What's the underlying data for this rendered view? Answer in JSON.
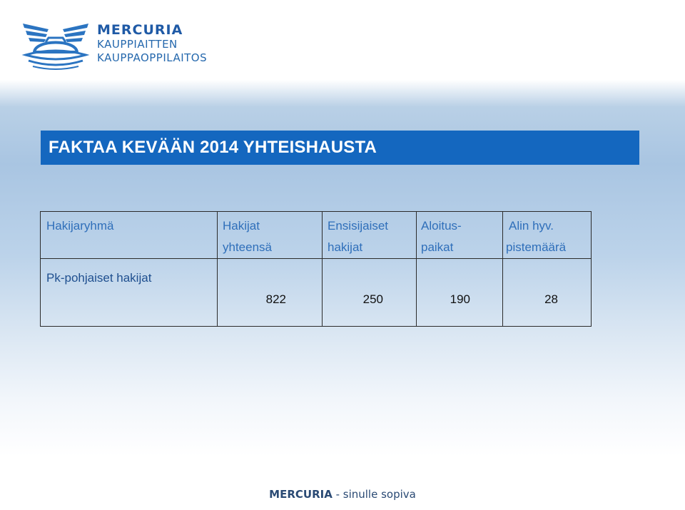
{
  "logo": {
    "line1": "MERCURIA",
    "line2": "KAUPPIAITTEN",
    "line3": "KAUPPAOPPILAITOS",
    "icon": "winged-helmet-icon",
    "color": "#1f5aa6"
  },
  "title": "FAKTAA KEVÄÄN 2014 YHTEISHAUSTA",
  "table": {
    "headers": [
      {
        "line1": "Hakijaryhmä",
        "line2": ""
      },
      {
        "line1": "Hakijat",
        "line2": "yhteensä"
      },
      {
        "line1": "Ensisijaiset",
        "line2": "hakijat"
      },
      {
        "line1": "Aloitus-",
        "line2": "paikat"
      },
      {
        "line1": "Alin hyv.",
        "line2": "pistemäärä"
      }
    ],
    "rows": [
      {
        "label": "Pk-pohjaiset hakijat",
        "values": [
          "822",
          "250",
          "190",
          "28"
        ]
      }
    ]
  },
  "footer": {
    "brand": "MERCURIA",
    "tagline": " - sinulle sopiva"
  },
  "colors": {
    "title_bar": "#1467bf",
    "header_text": "#2f6fba",
    "footer_text": "#2a4a74"
  }
}
